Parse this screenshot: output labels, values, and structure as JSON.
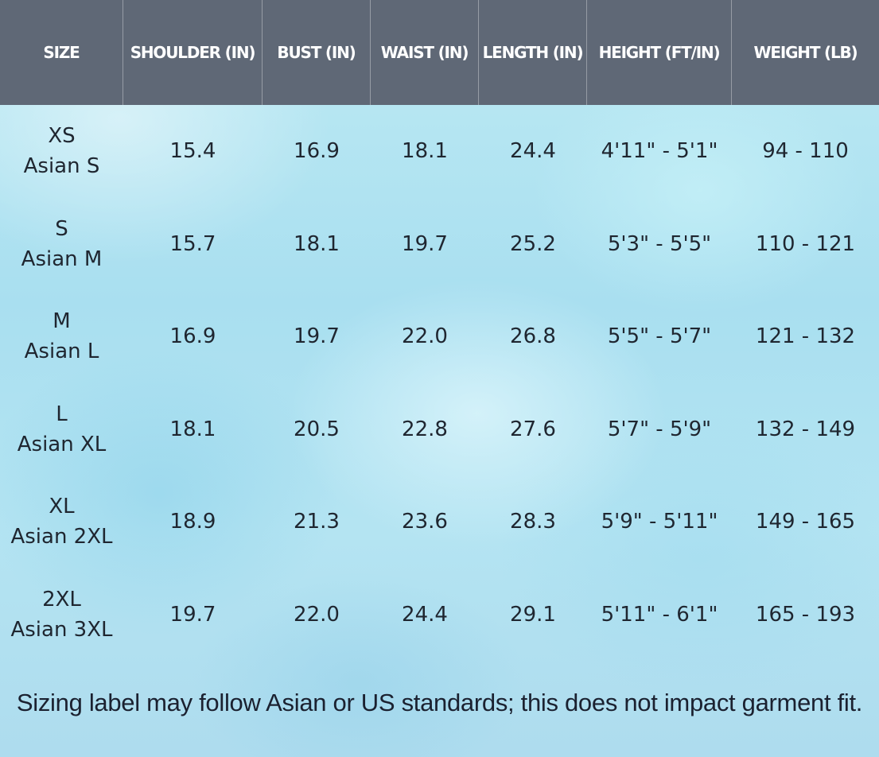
{
  "columns": [
    "SIZE",
    "SHOULDER (IN)",
    "BUST (IN)",
    "WAIST (IN)",
    "LENGTH (IN)",
    "HEIGHT (FT/IN)",
    "WEIGHT (LB)"
  ],
  "rows": [
    {
      "size": "XS",
      "asian": "Asian S",
      "shoulder": "15.4",
      "bust": "16.9",
      "waist": "18.1",
      "length": "24.4",
      "height": "4'11\" - 5'1\"",
      "weight": "94 - 110"
    },
    {
      "size": "S",
      "asian": "Asian M",
      "shoulder": "15.7",
      "bust": "18.1",
      "waist": "19.7",
      "length": "25.2",
      "height": "5'3\" - 5'5\"",
      "weight": "110 - 121"
    },
    {
      "size": "M",
      "asian": "Asian L",
      "shoulder": "16.9",
      "bust": "19.7",
      "waist": "22.0",
      "length": "26.8",
      "height": "5'5\" - 5'7\"",
      "weight": "121 - 132"
    },
    {
      "size": "L",
      "asian": "Asian XL",
      "shoulder": "18.1",
      "bust": "20.5",
      "waist": "22.8",
      "length": "27.6",
      "height": "5'7\" - 5'9\"",
      "weight": "132 - 149"
    },
    {
      "size": "XL",
      "asian": "Asian 2XL",
      "shoulder": "18.9",
      "bust": "21.3",
      "waist": "23.6",
      "length": "28.3",
      "height": "5'9\" - 5'11\"",
      "weight": "149 - 165"
    },
    {
      "size": "2XL",
      "asian": "Asian 3XL",
      "shoulder": "19.7",
      "bust": "22.0",
      "waist": "24.4",
      "length": "29.1",
      "height": "5'11\" - 6'1\"",
      "weight": "165 - 193"
    }
  ],
  "footnote": "Sizing label may follow Asian or US standards; this does not impact garment fit.",
  "colors": {
    "header_bg": "#5f6876",
    "header_text": "#ffffff",
    "body_text": "#1f2630",
    "background": "#b4e4f2"
  }
}
